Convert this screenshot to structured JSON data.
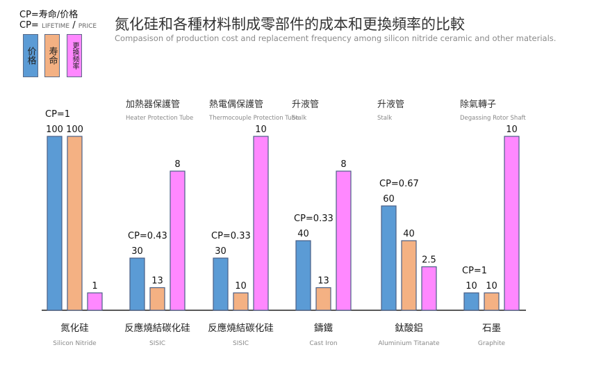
{
  "formulas": {
    "line1": "CP=寿命/价格",
    "line2_prefix": "CP=",
    "line2_lifetime": "LIFETIME",
    "line2_slash": "/",
    "line2_price": "PRICE"
  },
  "legend": [
    {
      "label": "价格",
      "color": "#5b9bd5"
    },
    {
      "label": "寿命",
      "color": "#f4b183"
    },
    {
      "label": "更换频率",
      "color": "#ff88ff"
    }
  ],
  "header": {
    "title": "氮化硅和各種材料制成零部件的成本和更換頻率的比較",
    "subtitle": "Compasison of production cost and replacement frequency among silicon nitride ceramic and other materials."
  },
  "chart_data": {
    "type": "bar",
    "title": "氮化硅和各種材料制成零部件的成本和更換頻率的比較",
    "subtitle": "Compasison of production cost and replacement frequency among silicon nitride ceramic and other materials.",
    "series": [
      {
        "name": "价格",
        "color": "#5b9bd5",
        "values": [
          100,
          30,
          30,
          40,
          60,
          10
        ]
      },
      {
        "name": "寿命",
        "color": "#f4b183",
        "values": [
          100,
          13,
          10,
          13,
          40,
          10
        ]
      },
      {
        "name": "更换频率",
        "color": "#ff88ff",
        "values": [
          1,
          8,
          10,
          8,
          2.5,
          10
        ]
      }
    ],
    "price_life_ylim": [
      0,
      100
    ],
    "frequency_ylim": [
      0,
      10
    ],
    "groups": [
      {
        "category": "氮化硅",
        "category_en": "Silicon Nitride",
        "part": "",
        "part_en": "",
        "cp": "CP=1",
        "labels": [
          "100",
          "100",
          "1"
        ]
      },
      {
        "category": "反應燒結碳化硅",
        "category_en": "SISIC",
        "part": "加熱器保護管",
        "part_en": "Heater Protection Tube",
        "cp": "CP=0.43",
        "labels": [
          "30",
          "13",
          "8"
        ]
      },
      {
        "category": "反應燒結碳化硅",
        "category_en": "SISIC",
        "part": "熱電偶保護管",
        "part_en": "Thermocouple Protection Tube",
        "cp": "CP=0.33",
        "labels": [
          "30",
          "10",
          "10"
        ]
      },
      {
        "category": "鑄鐵",
        "category_en": "Cast Iron",
        "part": "升液管",
        "part_en": "Stalk",
        "cp": "CP=0.33",
        "labels": [
          "40",
          "13",
          "8"
        ]
      },
      {
        "category": "鈦酸鋁",
        "category_en": "Aluminium Titanate",
        "part": "升液管",
        "part_en": "Stalk",
        "cp": "CP=0.67",
        "labels": [
          "60",
          "40",
          "2.5"
        ]
      },
      {
        "category": "石墨",
        "category_en": "Graphite",
        "part": "除氣轉子",
        "part_en": "Degassing Rotor Shaft",
        "cp": "CP=1",
        "labels": [
          "10",
          "10",
          "10"
        ]
      }
    ]
  }
}
